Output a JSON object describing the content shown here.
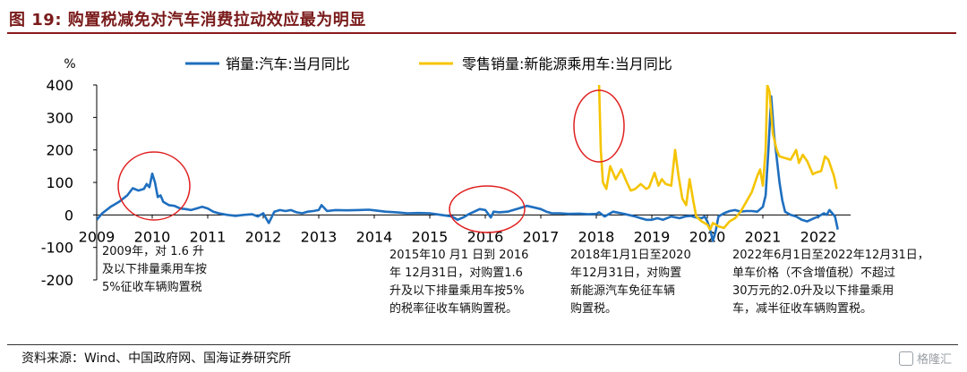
{
  "header": {
    "title": "图 19: 购置税减免对汽车消费拉动效应最为明显"
  },
  "footer": {
    "source": "资料来源：Wind、中国政府网、国海证券研究所",
    "watermark": "格隆汇"
  },
  "annotations": [
    {
      "text": "2009年，对 1.6 升\n及以下排量乘用车按\n5%征收车辆购置税"
    },
    {
      "text": "2015年10 月1 日到 2016\n年 12月31日，对购置1.6\n升及以下排量乘用车按5%\n的税率征收车辆购置税。"
    },
    {
      "text": "2018年1月1日至2020\n年12月31日，对购置\n新能源汽车免征车辆\n购置税。"
    },
    {
      "text": "2022年6月1日至2022年12月31日，\n单车价格（不含增值税）不超过\n30万元的2.0升及以下排量乘用\n车，减半征收车辆购置税。"
    }
  ],
  "colors": {
    "title": "#7a1a1a",
    "series_blue": "#1f6fbf",
    "series_yellow": "#f5c400",
    "circle": "#e02020"
  },
  "chart_data": {
    "type": "line",
    "y_unit": "%",
    "ylim": [
      -200,
      400
    ],
    "yticks": [
      "400",
      "300",
      "200",
      "100",
      "0",
      "-100",
      "-200"
    ],
    "x_tick_labels": [
      "2009",
      "2010",
      "2011",
      "2012",
      "2013",
      "2014",
      "2015",
      "2016",
      "2017",
      "2018",
      "2019",
      "2020",
      "2021",
      "2022"
    ],
    "grid": false,
    "legend": [
      "销量:汽车:当月同比",
      "零售销量:新能源乘用车:当月同比"
    ],
    "series": [
      {
        "name": "销量:汽车:当月同比",
        "color": "#1f6fbf",
        "points": [
          [
            2009.0,
            -15
          ],
          [
            2009.1,
            5
          ],
          [
            2009.25,
            25
          ],
          [
            2009.4,
            40
          ],
          [
            2009.55,
            60
          ],
          [
            2009.65,
            82
          ],
          [
            2009.75,
            75
          ],
          [
            2009.85,
            80
          ],
          [
            2009.9,
            95
          ],
          [
            2009.95,
            85
          ],
          [
            2010.0,
            127
          ],
          [
            2010.05,
            100
          ],
          [
            2010.1,
            55
          ],
          [
            2010.15,
            60
          ],
          [
            2010.2,
            40
          ],
          [
            2010.3,
            30
          ],
          [
            2010.4,
            28
          ],
          [
            2010.5,
            20
          ],
          [
            2010.6,
            18
          ],
          [
            2010.7,
            15
          ],
          [
            2010.8,
            20
          ],
          [
            2010.9,
            25
          ],
          [
            2011.0,
            20
          ],
          [
            2011.1,
            10
          ],
          [
            2011.2,
            5
          ],
          [
            2011.35,
            0
          ],
          [
            2011.5,
            -3
          ],
          [
            2011.65,
            0
          ],
          [
            2011.8,
            2
          ],
          [
            2011.9,
            -5
          ],
          [
            2012.0,
            5
          ],
          [
            2012.1,
            -25
          ],
          [
            2012.2,
            10
          ],
          [
            2012.3,
            15
          ],
          [
            2012.4,
            12
          ],
          [
            2012.5,
            15
          ],
          [
            2012.6,
            8
          ],
          [
            2012.7,
            5
          ],
          [
            2012.8,
            10
          ],
          [
            2012.9,
            12
          ],
          [
            2013.0,
            15
          ],
          [
            2013.05,
            30
          ],
          [
            2013.15,
            12
          ],
          [
            2013.3,
            15
          ],
          [
            2013.5,
            14
          ],
          [
            2013.7,
            15
          ],
          [
            2013.9,
            16
          ],
          [
            2014.0,
            14
          ],
          [
            2014.2,
            10
          ],
          [
            2014.4,
            8
          ],
          [
            2014.6,
            5
          ],
          [
            2014.8,
            6
          ],
          [
            2015.0,
            5
          ],
          [
            2015.2,
            0
          ],
          [
            2015.4,
            -5
          ],
          [
            2015.5,
            -15
          ],
          [
            2015.6,
            -8
          ],
          [
            2015.7,
            2
          ],
          [
            2015.8,
            10
          ],
          [
            2015.9,
            18
          ],
          [
            2016.0,
            15
          ],
          [
            2016.1,
            -8
          ],
          [
            2016.15,
            10
          ],
          [
            2016.25,
            8
          ],
          [
            2016.4,
            10
          ],
          [
            2016.6,
            20
          ],
          [
            2016.75,
            28
          ],
          [
            2016.9,
            22
          ],
          [
            2017.0,
            18
          ],
          [
            2017.1,
            10
          ],
          [
            2017.2,
            5
          ],
          [
            2017.35,
            5
          ],
          [
            2017.5,
            3
          ],
          [
            2017.7,
            4
          ],
          [
            2017.85,
            2
          ],
          [
            2018.0,
            3
          ],
          [
            2018.05,
            8
          ],
          [
            2018.15,
            -5
          ],
          [
            2018.3,
            10
          ],
          [
            2018.5,
            3
          ],
          [
            2018.7,
            -5
          ],
          [
            2018.8,
            -10
          ],
          [
            2018.9,
            -15
          ],
          [
            2019.0,
            -15
          ],
          [
            2019.1,
            -10
          ],
          [
            2019.2,
            -15
          ],
          [
            2019.35,
            -5
          ],
          [
            2019.5,
            -10
          ],
          [
            2019.6,
            -5
          ],
          [
            2019.7,
            -3
          ],
          [
            2019.8,
            -8
          ],
          [
            2019.9,
            -10
          ],
          [
            2019.95,
            -5
          ],
          [
            2020.0,
            -20
          ],
          [
            2020.05,
            -45
          ],
          [
            2020.1,
            -80
          ],
          [
            2020.15,
            -50
          ],
          [
            2020.2,
            -5
          ],
          [
            2020.3,
            5
          ],
          [
            2020.4,
            12
          ],
          [
            2020.5,
            15
          ],
          [
            2020.6,
            10
          ],
          [
            2020.7,
            12
          ],
          [
            2020.8,
            12
          ],
          [
            2020.9,
            10
          ],
          [
            2021.0,
            25
          ],
          [
            2021.05,
            60
          ],
          [
            2021.1,
            200
          ],
          [
            2021.15,
            365
          ],
          [
            2021.2,
            250
          ],
          [
            2021.3,
            100
          ],
          [
            2021.35,
            45
          ],
          [
            2021.4,
            10
          ],
          [
            2021.5,
            0
          ],
          [
            2021.6,
            -5
          ],
          [
            2021.7,
            -15
          ],
          [
            2021.8,
            -20
          ],
          [
            2021.9,
            -12
          ],
          [
            2022.0,
            -5
          ],
          [
            2022.1,
            5
          ],
          [
            2022.15,
            0
          ],
          [
            2022.2,
            15
          ],
          [
            2022.3,
            -5
          ],
          [
            2022.35,
            -45
          ]
        ]
      },
      {
        "name": "零售销量:新能源乘用车:当月同比",
        "color": "#f5c400",
        "points": [
          [
            2018.05,
            400
          ],
          [
            2018.08,
            200
          ],
          [
            2018.12,
            100
          ],
          [
            2018.18,
            80
          ],
          [
            2018.25,
            150
          ],
          [
            2018.35,
            110
          ],
          [
            2018.45,
            140
          ],
          [
            2018.55,
            100
          ],
          [
            2018.62,
            75
          ],
          [
            2018.7,
            80
          ],
          [
            2018.8,
            95
          ],
          [
            2018.9,
            80
          ],
          [
            2018.95,
            85
          ],
          [
            2019.05,
            130
          ],
          [
            2019.12,
            90
          ],
          [
            2019.18,
            110
          ],
          [
            2019.25,
            95
          ],
          [
            2019.35,
            90
          ],
          [
            2019.42,
            200
          ],
          [
            2019.48,
            120
          ],
          [
            2019.55,
            50
          ],
          [
            2019.62,
            30
          ],
          [
            2019.68,
            110
          ],
          [
            2019.75,
            40
          ],
          [
            2019.8,
            -5
          ],
          [
            2019.9,
            -20
          ],
          [
            2020.0,
            -30
          ],
          [
            2020.05,
            -45
          ],
          [
            2020.1,
            -25
          ],
          [
            2020.15,
            -30
          ],
          [
            2020.2,
            -35
          ],
          [
            2020.3,
            -40
          ],
          [
            2020.4,
            -20
          ],
          [
            2020.5,
            -10
          ],
          [
            2020.55,
            0
          ],
          [
            2020.6,
            10
          ],
          [
            2020.7,
            40
          ],
          [
            2020.8,
            70
          ],
          [
            2020.9,
            120
          ],
          [
            2020.95,
            140
          ],
          [
            2021.0,
            90
          ],
          [
            2021.05,
            200
          ],
          [
            2021.08,
            400
          ],
          [
            2021.12,
            380
          ],
          [
            2021.18,
            250
          ],
          [
            2021.25,
            200
          ],
          [
            2021.3,
            180
          ],
          [
            2021.4,
            175
          ],
          [
            2021.5,
            170
          ],
          [
            2021.6,
            200
          ],
          [
            2021.65,
            160
          ],
          [
            2021.72,
            185
          ],
          [
            2021.8,
            165
          ],
          [
            2021.9,
            125
          ],
          [
            2021.95,
            130
          ],
          [
            2022.05,
            135
          ],
          [
            2022.12,
            180
          ],
          [
            2022.18,
            170
          ],
          [
            2022.28,
            120
          ],
          [
            2022.33,
            80
          ]
        ]
      }
    ]
  }
}
